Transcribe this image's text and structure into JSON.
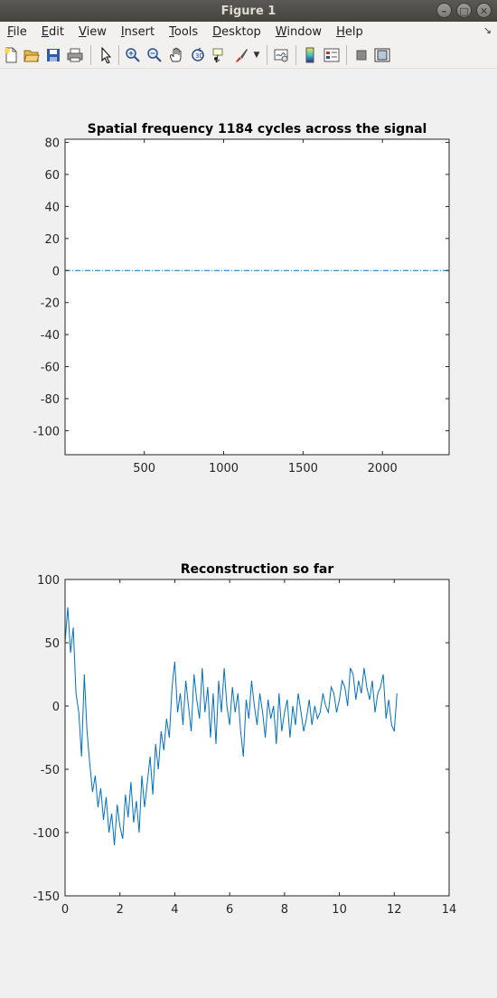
{
  "window": {
    "title": "Figure 1"
  },
  "menu": {
    "items": [
      {
        "label": "File",
        "underline": "F",
        "rest": "ile"
      },
      {
        "label": "Edit",
        "underline": "E",
        "rest": "dit"
      },
      {
        "label": "View",
        "underline": "V",
        "rest": "iew"
      },
      {
        "label": "Insert",
        "underline": "I",
        "rest": "nsert"
      },
      {
        "label": "Tools",
        "underline": "T",
        "rest": "ools"
      },
      {
        "label": "Desktop",
        "underline": "D",
        "rest": "esktop"
      },
      {
        "label": "Window",
        "underline": "W",
        "rest": "indow"
      },
      {
        "label": "Help",
        "underline": "H",
        "rest": "elp"
      }
    ]
  },
  "toolbar": {
    "icons": [
      "new-figure-icon",
      "open-file-icon",
      "save-icon",
      "print-icon",
      "pointer-icon",
      "zoom-in-icon",
      "zoom-out-icon",
      "pan-icon",
      "rotate-3d-icon",
      "data-cursor-icon",
      "brush-icon",
      "brush-dropdown-icon",
      "link-plot-icon",
      "colorbar-icon",
      "legend-icon",
      "hide-plot-tools-icon",
      "show-plot-tools-icon"
    ]
  },
  "chart_data": [
    {
      "type": "line",
      "title": "Spatial frequency 1184 cycles across the signal",
      "xlim": [
        1,
        2420
      ],
      "ylim": [
        -115,
        82
      ],
      "xticks": [
        500,
        1000,
        1500,
        2000
      ],
      "yticks": [
        80,
        60,
        40,
        20,
        0,
        -20,
        -40,
        -60,
        -80,
        -100
      ],
      "series": [
        {
          "x": [
            1,
            2420
          ],
          "values": [
            0,
            0
          ],
          "color": "#0072bd",
          "style": "dash-dot"
        }
      ],
      "grid": false
    },
    {
      "type": "line",
      "title": "Reconstruction so far",
      "xlim": [
        0,
        14
      ],
      "ylim": [
        -150,
        100
      ],
      "xticks": [
        0,
        2,
        4,
        6,
        8,
        10,
        12,
        14
      ],
      "yticks": [
        100,
        50,
        0,
        -50,
        -100,
        -150
      ],
      "series": [
        {
          "color": "#0072bd",
          "x": [
            0,
            0.1,
            0.2,
            0.3,
            0.4,
            0.5,
            0.6,
            0.7,
            0.8,
            0.9,
            1.0,
            1.1,
            1.2,
            1.3,
            1.4,
            1.5,
            1.6,
            1.7,
            1.8,
            1.9,
            2.0,
            2.1,
            2.2,
            2.3,
            2.4,
            2.5,
            2.6,
            2.7,
            2.8,
            2.9,
            3.0,
            3.1,
            3.2,
            3.3,
            3.4,
            3.5,
            3.6,
            3.7,
            3.8,
            3.9,
            4.0,
            4.1,
            4.2,
            4.3,
            4.4,
            4.5,
            4.6,
            4.7,
            4.8,
            4.9,
            5.0,
            5.1,
            5.2,
            5.3,
            5.4,
            5.5,
            5.6,
            5.7,
            5.8,
            5.9,
            6.0,
            6.1,
            6.2,
            6.3,
            6.4,
            6.5,
            6.6,
            6.7,
            6.8,
            6.9,
            7.0,
            7.1,
            7.2,
            7.3,
            7.4,
            7.5,
            7.6,
            7.7,
            7.8,
            7.9,
            8.0,
            8.1,
            8.2,
            8.3,
            8.4,
            8.5,
            8.6,
            8.7,
            8.8,
            8.9,
            9.0,
            9.1,
            9.2,
            9.3,
            9.4,
            9.5,
            9.6,
            9.7,
            9.8,
            9.9,
            10.0,
            10.1,
            10.2,
            10.3,
            10.4,
            10.5,
            10.6,
            10.7,
            10.8,
            10.9,
            11.0,
            11.1,
            11.2,
            11.3,
            11.4,
            11.5,
            11.6,
            11.7,
            11.8,
            11.9,
            12.0,
            12.1
          ],
          "values": [
            50,
            78,
            42,
            62,
            10,
            -5,
            -40,
            25,
            -20,
            -45,
            -68,
            -55,
            -80,
            -65,
            -90,
            -72,
            -100,
            -85,
            -110,
            -78,
            -95,
            -105,
            -70,
            -88,
            -60,
            -92,
            -75,
            -100,
            -55,
            -80,
            -60,
            -40,
            -70,
            -30,
            -50,
            -20,
            -35,
            -10,
            -25,
            15,
            35,
            -5,
            10,
            -15,
            20,
            0,
            -20,
            25,
            5,
            -10,
            30,
            -5,
            15,
            -25,
            10,
            -30,
            20,
            -5,
            30,
            0,
            -15,
            15,
            -5,
            10,
            -20,
            -40,
            5,
            -10,
            20,
            0,
            -15,
            10,
            -5,
            -25,
            5,
            -10,
            0,
            -30,
            10,
            -20,
            -5,
            5,
            -25,
            0,
            -15,
            10,
            -5,
            -20,
            -10,
            5,
            -15,
            0,
            -10,
            -5,
            10,
            0,
            -5,
            15,
            10,
            -5,
            5,
            20,
            15,
            0,
            30,
            25,
            5,
            20,
            10,
            30,
            15,
            5,
            20,
            -5,
            10,
            15,
            25,
            -10,
            5,
            -15,
            -20,
            10
          ]
        }
      ],
      "grid": false
    }
  ]
}
